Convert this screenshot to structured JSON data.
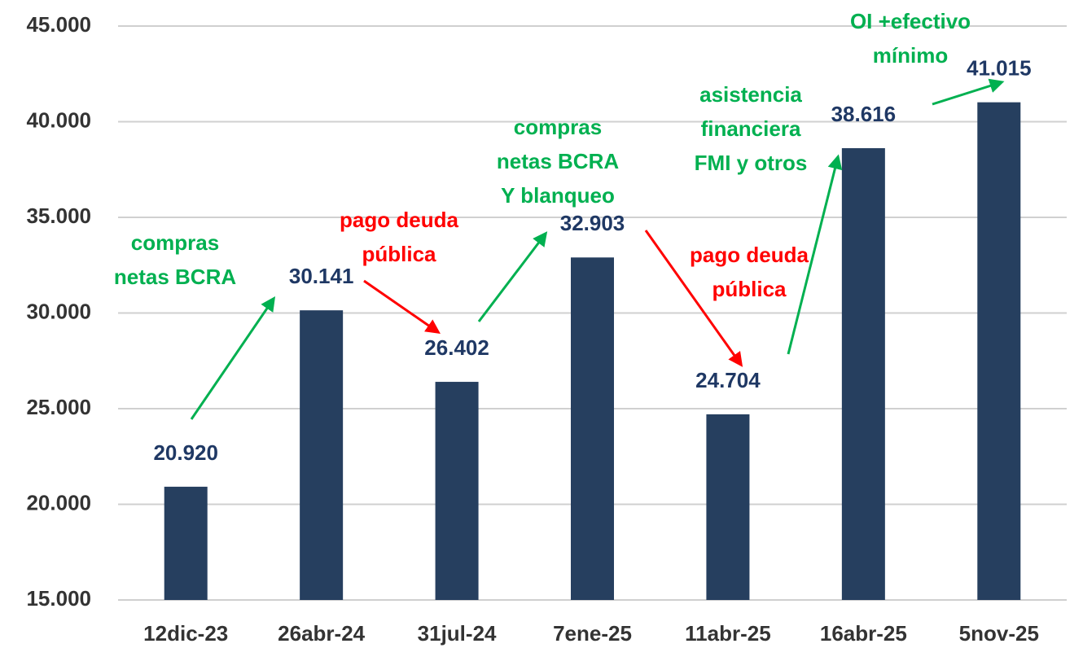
{
  "chart_data": {
    "type": "bar",
    "categories": [
      "12dic-23",
      "26abr-24",
      "31jul-24",
      "7ene-25",
      "11abr-25",
      "16abr-25",
      "5nov-25"
    ],
    "values": [
      20920,
      30141,
      26402,
      32903,
      24704,
      38616,
      41015
    ],
    "value_labels": [
      "20.920",
      "30.141",
      "26.402",
      "32.903",
      "24.704",
      "38.616",
      "41.015"
    ],
    "color": "#263f5f",
    "ylim": [
      15000,
      45000
    ],
    "yticks": [
      {
        "value": 15000,
        "label": "15.000"
      },
      {
        "value": 20000,
        "label": "20.000"
      },
      {
        "value": 25000,
        "label": "25.000"
      },
      {
        "value": 30000,
        "label": "30.000"
      },
      {
        "value": 35000,
        "label": "35.000"
      },
      {
        "value": 40000,
        "label": "40.000"
      },
      {
        "value": 45000,
        "label": "45.000"
      }
    ],
    "grid": true,
    "annotations": [
      {
        "lines": [
          "compras",
          "netas BCRA"
        ],
        "color": "#00b050"
      },
      {
        "lines": [
          "pago deuda",
          "pública"
        ],
        "color": "#ff0000"
      },
      {
        "lines": [
          "compras",
          "netas BCRA",
          "Y blanqueo"
        ],
        "color": "#00b050"
      },
      {
        "lines": [
          "pago deuda",
          "pública"
        ],
        "color": "#ff0000"
      },
      {
        "lines": [
          "asistencia",
          "financiera",
          "FMI y otros"
        ],
        "color": "#00b050"
      },
      {
        "lines": [
          "OI +efectivo",
          "mínimo"
        ],
        "color": "#00b050"
      }
    ]
  }
}
